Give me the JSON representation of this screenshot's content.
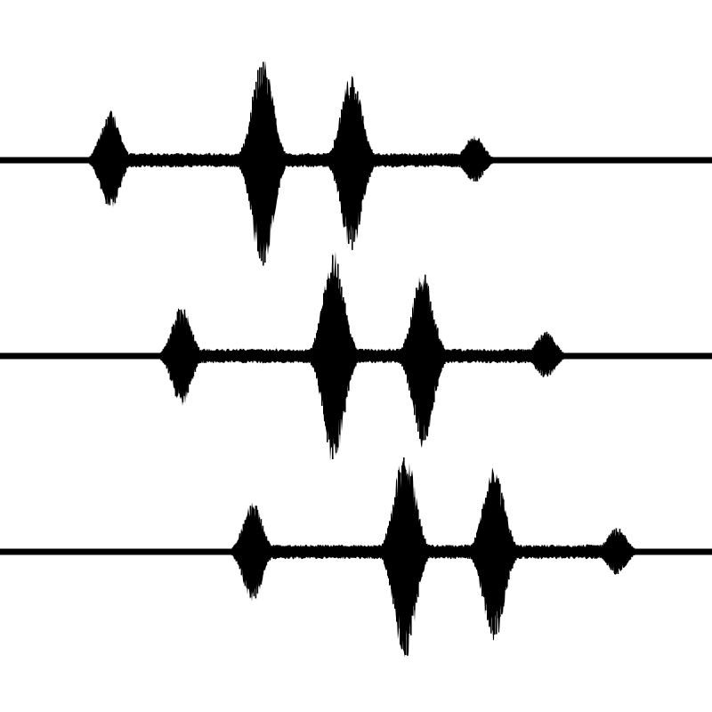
{
  "figure": {
    "background_color": "#ffffff",
    "waveform_color": "#000000",
    "tracks": [
      {
        "name": "waveform-track-1"
      },
      {
        "name": "waveform-track-2"
      },
      {
        "name": "waveform-track-3"
      }
    ]
  }
}
